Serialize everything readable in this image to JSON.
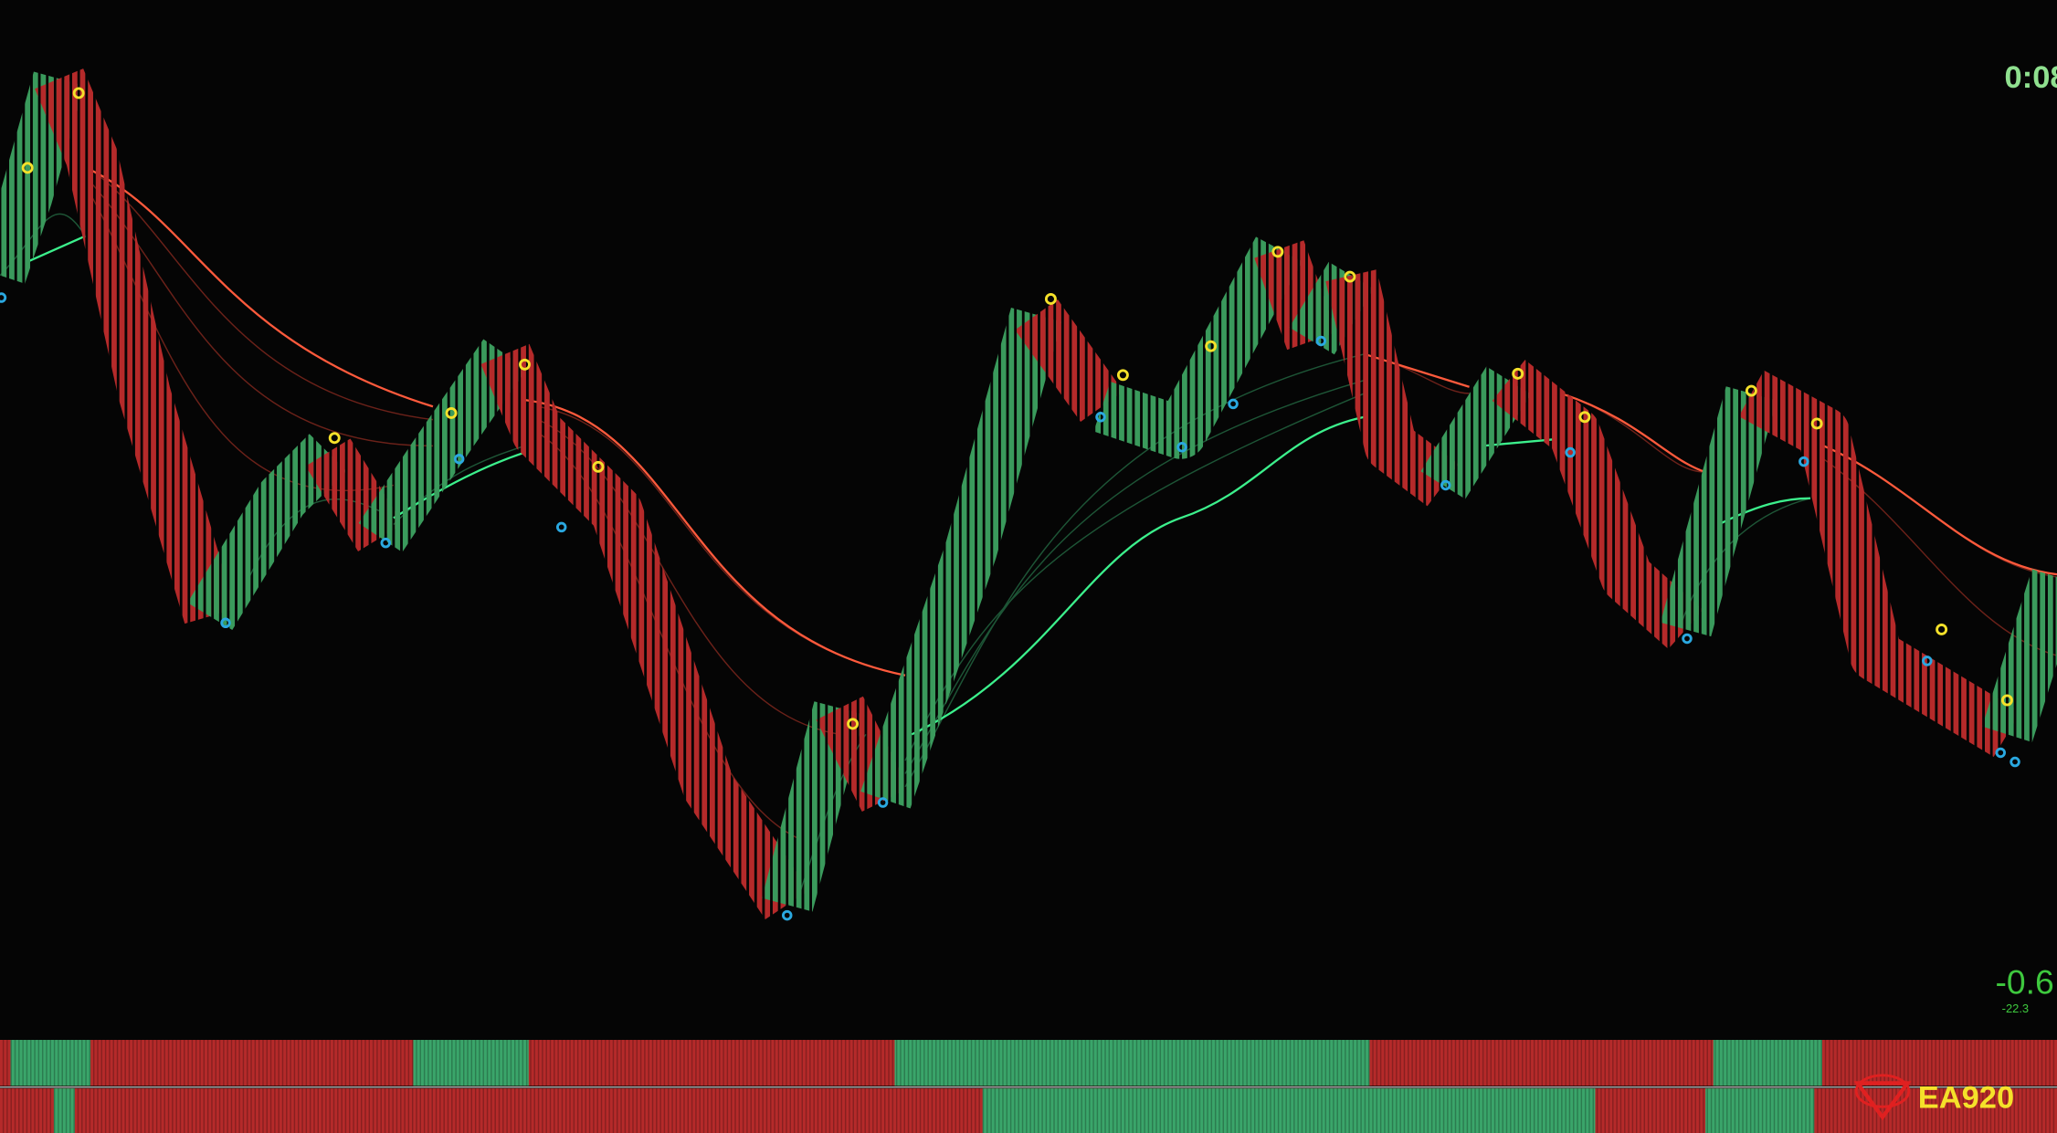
{
  "clock": "0:08",
  "indicator": {
    "value": "-0.6",
    "sub": "-22.3"
  },
  "logo": "EA920"
}
